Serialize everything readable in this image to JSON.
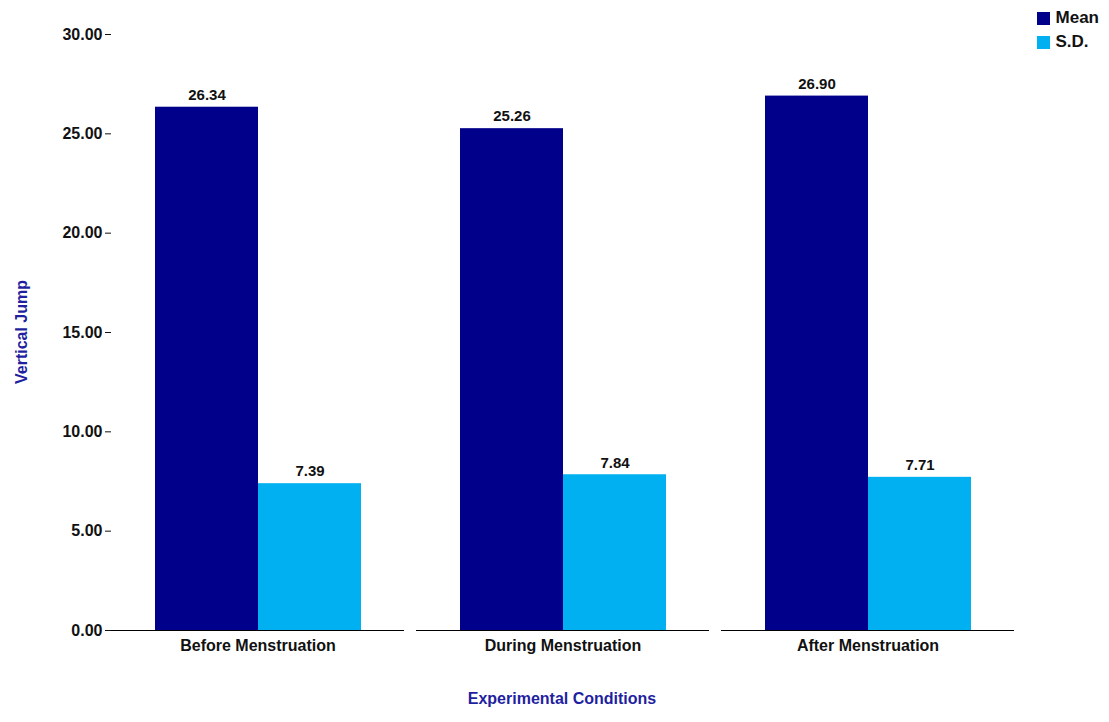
{
  "chart_data": {
    "type": "bar",
    "x_label": "Experimental Conditions",
    "y_label": "Vertical Jump",
    "categories": [
      "Before Menstruation",
      "During Menstruation",
      "After Menstruation"
    ],
    "series": [
      {
        "name": "Mean",
        "color": "#00008B",
        "values": [
          26.34,
          25.26,
          26.9
        ],
        "value_labels": [
          "26.34",
          "25.26",
          "26.90"
        ]
      },
      {
        "name": "S.D.",
        "color": "#00B0F0",
        "values": [
          7.39,
          7.84,
          7.71
        ],
        "value_labels": [
          "7.39",
          "7.84",
          "7.71"
        ]
      }
    ],
    "ylim": [
      0,
      30
    ],
    "yticks": [
      {
        "value": 0,
        "label": "0.00"
      },
      {
        "value": 5,
        "label": "5.00"
      },
      {
        "value": 10,
        "label": "10.00"
      },
      {
        "value": 15,
        "label": "15.00"
      },
      {
        "value": 20,
        "label": "20.00"
      },
      {
        "value": 25,
        "label": "25.00"
      },
      {
        "value": 30,
        "label": "30.00"
      }
    ],
    "data_labels": true,
    "legend": "top-right",
    "grid": false
  }
}
